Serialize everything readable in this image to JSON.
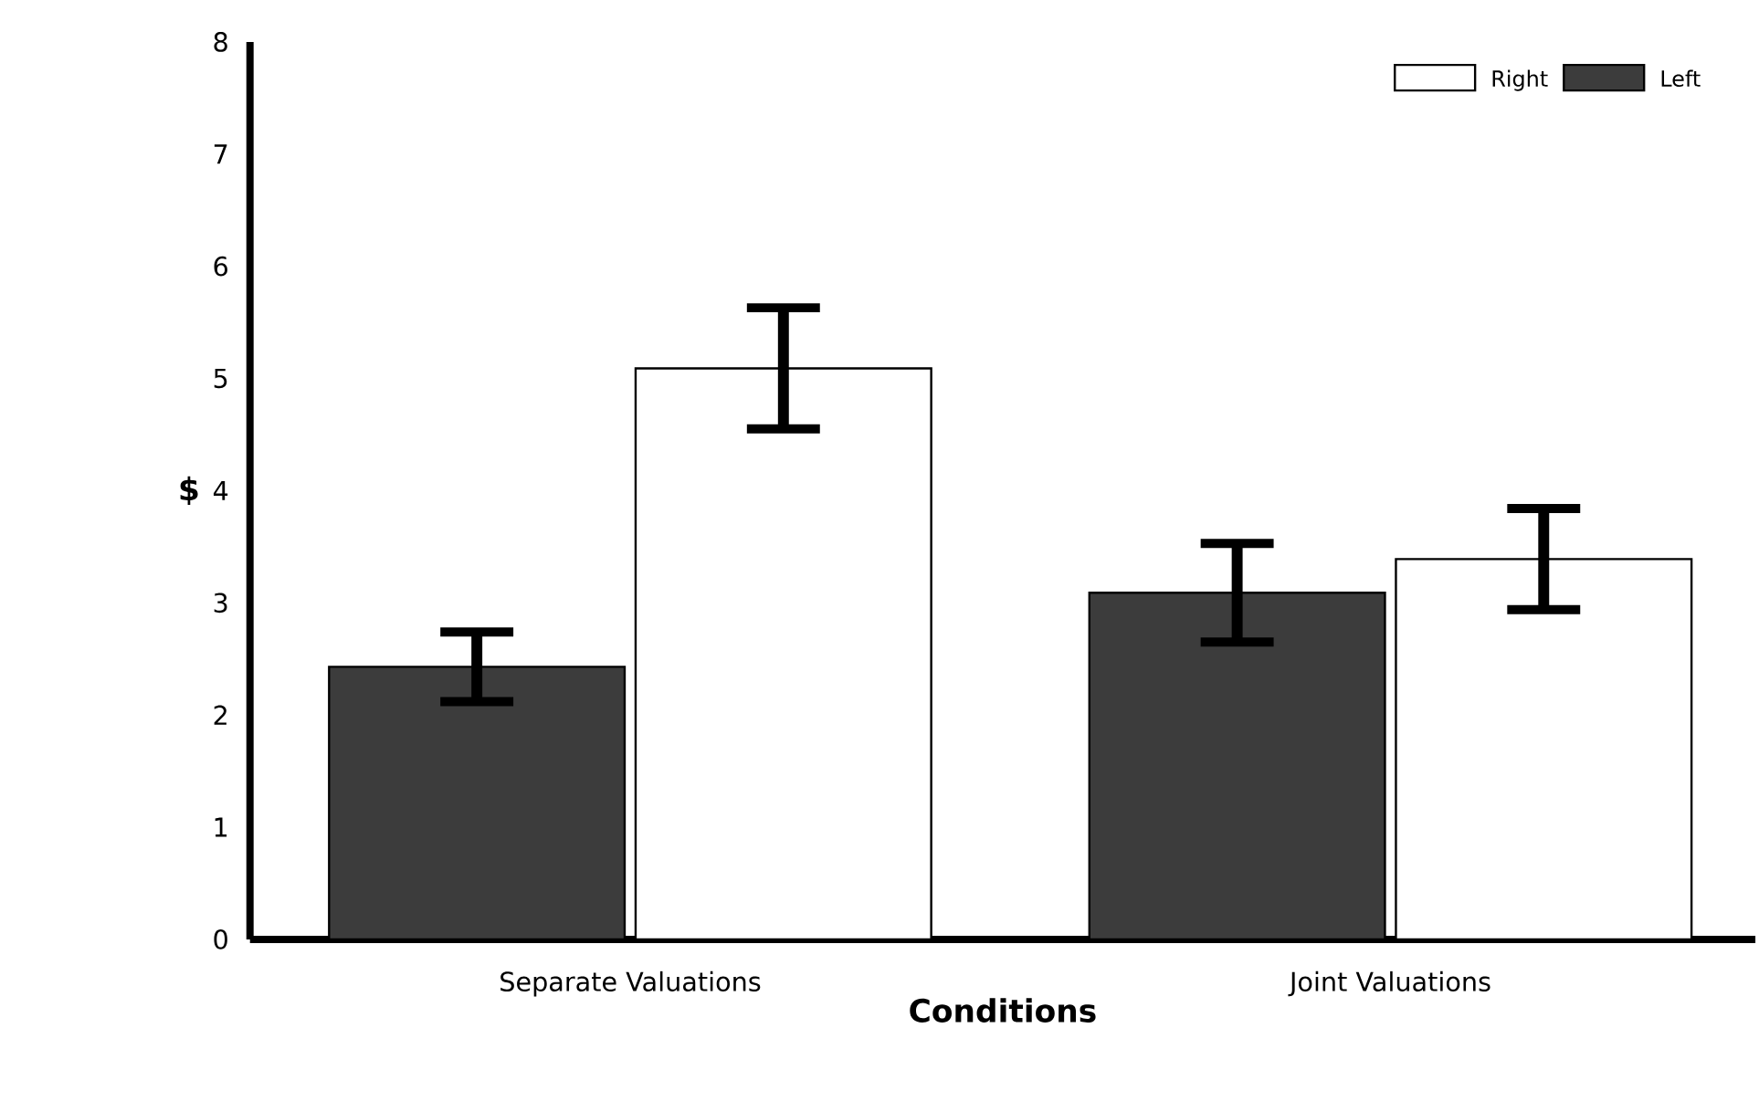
{
  "chart_data": {
    "type": "bar",
    "xlabel": "Conditions",
    "ylabel": "$",
    "categories": [
      "Separate Valuations",
      "Joint Valuations"
    ],
    "series": [
      {
        "name": "Left",
        "color": "#3c3c3c",
        "values": [
          2.43,
          3.09
        ],
        "errors": [
          0.31,
          0.44
        ]
      },
      {
        "name": "Right",
        "color": "#ffffff",
        "values": [
          5.09,
          3.39
        ],
        "errors": [
          0.54,
          0.45
        ]
      }
    ],
    "ylim": [
      0,
      8
    ],
    "yticks": [
      0,
      1,
      2,
      3,
      4,
      5,
      6,
      7,
      8
    ],
    "legend": "top right",
    "grid": false
  }
}
